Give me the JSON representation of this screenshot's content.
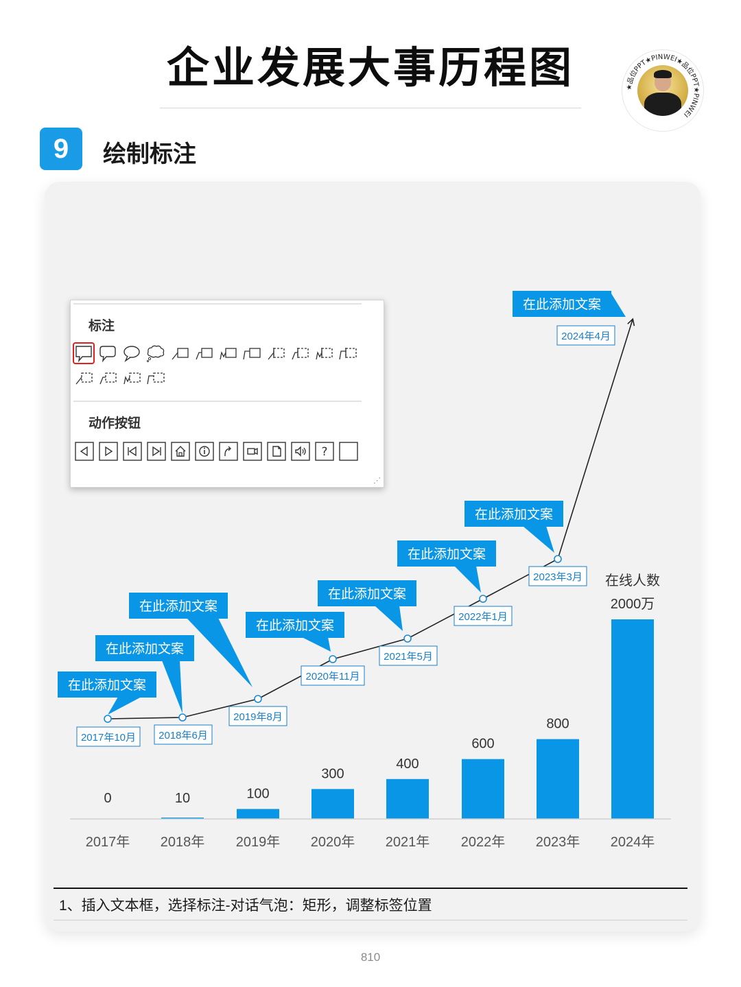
{
  "header": {
    "title": "企业发展大事历程图"
  },
  "logo": {
    "ring_text": "★品位PPT★PINWEI★品位PPT★PINWEI",
    "icon": "portrait-logo"
  },
  "step": {
    "number": "9",
    "title": "绘制标注"
  },
  "popup": {
    "callout_heading": "标注",
    "action_heading": "动作按钮",
    "callout_icons": [
      "rect-speech-bubble-icon",
      "rounded-speech-bubble-icon",
      "oval-speech-bubble-icon",
      "cloud-bubble-icon",
      "line-callout-1-icon",
      "line-callout-2-icon",
      "line-callout-3-icon",
      "line-callout-4-icon",
      "accent-callout-1-icon",
      "accent-callout-2-icon",
      "accent-callout-3-icon",
      "accent-callout-4-icon",
      "border-callout-1-icon",
      "border-callout-2-icon",
      "border-callout-3-icon",
      "border-callout-4-icon"
    ],
    "selected_callout": "rect-speech-bubble-icon",
    "action_icons": [
      "back-icon",
      "forward-icon",
      "beginning-icon",
      "end-icon",
      "home-icon",
      "information-icon",
      "return-icon",
      "video-icon",
      "document-icon",
      "sound-icon",
      "help-icon",
      "blank-icon"
    ],
    "colors": {
      "selected_outline": "#e02020"
    }
  },
  "chart_data": {
    "type": "bar",
    "categories": [
      "2017年",
      "2018年",
      "2019年",
      "2020年",
      "2021年",
      "2022年",
      "2023年",
      "2024年"
    ],
    "values": [
      0,
      10,
      100,
      300,
      400,
      600,
      800,
      2000
    ],
    "value_labels": [
      "0",
      "10",
      "100",
      "300",
      "400",
      "600",
      "800",
      "2000万"
    ],
    "ylim": [
      0,
      2000
    ],
    "series_label": "在线人数",
    "bar_color": "#0a96e6",
    "line_series": {
      "type": "line",
      "points": [
        {
          "date": "2017年10月"
        },
        {
          "date": "2018年6月"
        },
        {
          "date": "2019年8月"
        },
        {
          "date": "2020年11月"
        },
        {
          "date": "2021年5月"
        },
        {
          "date": "2022年1月"
        },
        {
          "date": "2023年3月"
        },
        {
          "date": "2024年4月"
        }
      ],
      "end_arrow": true
    },
    "callouts": [
      {
        "text": "在此添加文案",
        "target": "2017年10月"
      },
      {
        "text": "在此添加文案",
        "target": "2018年6月"
      },
      {
        "text": "在此添加文案",
        "target": "2019年8月"
      },
      {
        "text": "在此添加文案",
        "target": "2020年11月"
      },
      {
        "text": "在此添加文案",
        "target": "2021年5月"
      },
      {
        "text": "在此添加文案",
        "target": "2022年1月"
      },
      {
        "text": "在此添加文案",
        "target": "2023年3月"
      },
      {
        "text": "在此添加文案",
        "target": "2024年4月"
      }
    ],
    "callout_color": "#0a96e6",
    "date_label_color": "#1a7fc8",
    "grid": false
  },
  "footer": {
    "instruction": "1、插入文本框，选择标注-对话气泡：矩形，调整标签位置",
    "page_number": "810"
  }
}
